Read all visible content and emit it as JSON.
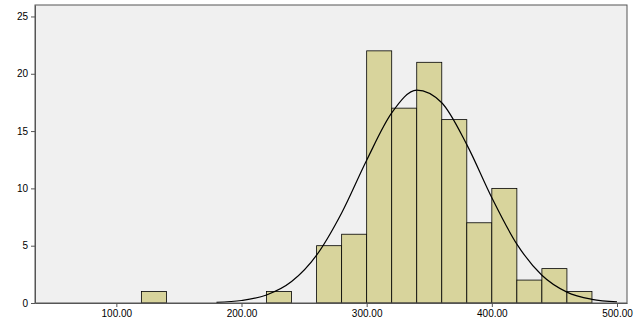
{
  "chart_data": {
    "type": "histogram",
    "color": "#d8d49c",
    "bins": [
      120,
      140,
      160,
      180,
      200,
      220,
      240,
      260,
      280,
      300,
      320,
      340,
      360,
      380,
      400,
      420,
      440,
      460,
      480
    ],
    "counts": [
      1,
      0,
      0,
      0,
      0,
      1,
      0,
      5,
      6,
      22,
      17,
      21,
      16,
      7,
      10,
      2,
      3,
      1
    ],
    "curve": {
      "type": "line",
      "color": "#000000",
      "x": [
        180,
        200,
        220,
        240,
        260,
        280,
        300,
        320,
        340,
        360,
        380,
        400,
        420,
        440,
        460,
        480,
        500
      ],
      "values": [
        0.06,
        0.22,
        0.7,
        1.87,
        4.18,
        7.86,
        12.46,
        16.58,
        18.57,
        17.47,
        13.82,
        9.19,
        5.14,
        2.42,
        0.95,
        0.32,
        0.09
      ]
    },
    "xlim": [
      35,
      508
    ],
    "xticks": [
      {
        "value": 100,
        "label": "100.00"
      },
      {
        "value": 200,
        "label": "200.00"
      },
      {
        "value": 300,
        "label": "300.00"
      },
      {
        "value": 400,
        "label": "400.00"
      },
      {
        "value": 500,
        "label": "500.00"
      }
    ],
    "ylim": [
      0,
      26
    ],
    "yticks": [
      0,
      5,
      10,
      15,
      20,
      25
    ],
    "grid": false
  }
}
